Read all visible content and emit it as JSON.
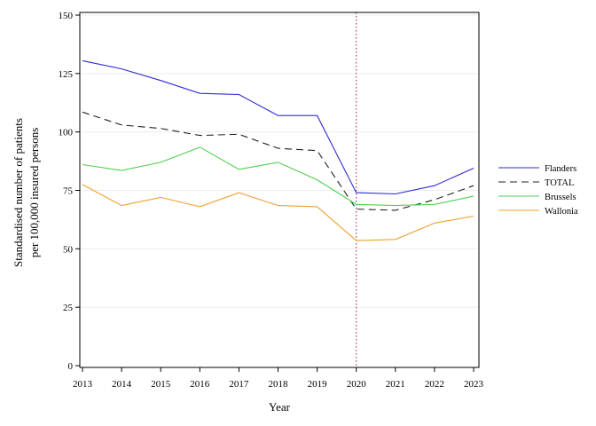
{
  "chart_data": {
    "type": "line",
    "title": "",
    "xlabel": "Year",
    "ylabel_lines": [
      "Standardised number of patients",
      "per 100,000 insured persons"
    ],
    "x": [
      2013,
      2014,
      2015,
      2016,
      2017,
      2018,
      2019,
      2020,
      2021,
      2022,
      2023
    ],
    "ylim": [
      0,
      150
    ],
    "yticks": [
      0,
      25,
      50,
      75,
      100,
      125,
      150
    ],
    "grid": "horizontal, light",
    "reference_line_x": 2020,
    "legend_position": "right",
    "series": [
      {
        "name": "Flanders",
        "color": "#2b2bd6",
        "dash": "solid",
        "values": [
          130.5,
          127,
          122,
          116.5,
          116,
          107,
          107,
          74,
          73.5,
          77,
          84.5
        ]
      },
      {
        "name": "TOTAL",
        "color": "#222222",
        "dash": "dashed",
        "values": [
          108.5,
          103,
          101.5,
          98.5,
          99,
          93,
          92,
          67,
          66.5,
          71,
          77
        ]
      },
      {
        "name": "Brussels",
        "color": "#4fcf4f",
        "dash": "solid",
        "values": [
          86,
          83.5,
          87,
          93.5,
          84,
          87,
          79.5,
          69,
          68.5,
          69,
          72.5
        ]
      },
      {
        "name": "Wallonia",
        "color": "#f0a030",
        "dash": "solid",
        "values": [
          77.5,
          68.5,
          72,
          68,
          74,
          68.5,
          68,
          53.5,
          54,
          61,
          64
        ]
      }
    ]
  }
}
